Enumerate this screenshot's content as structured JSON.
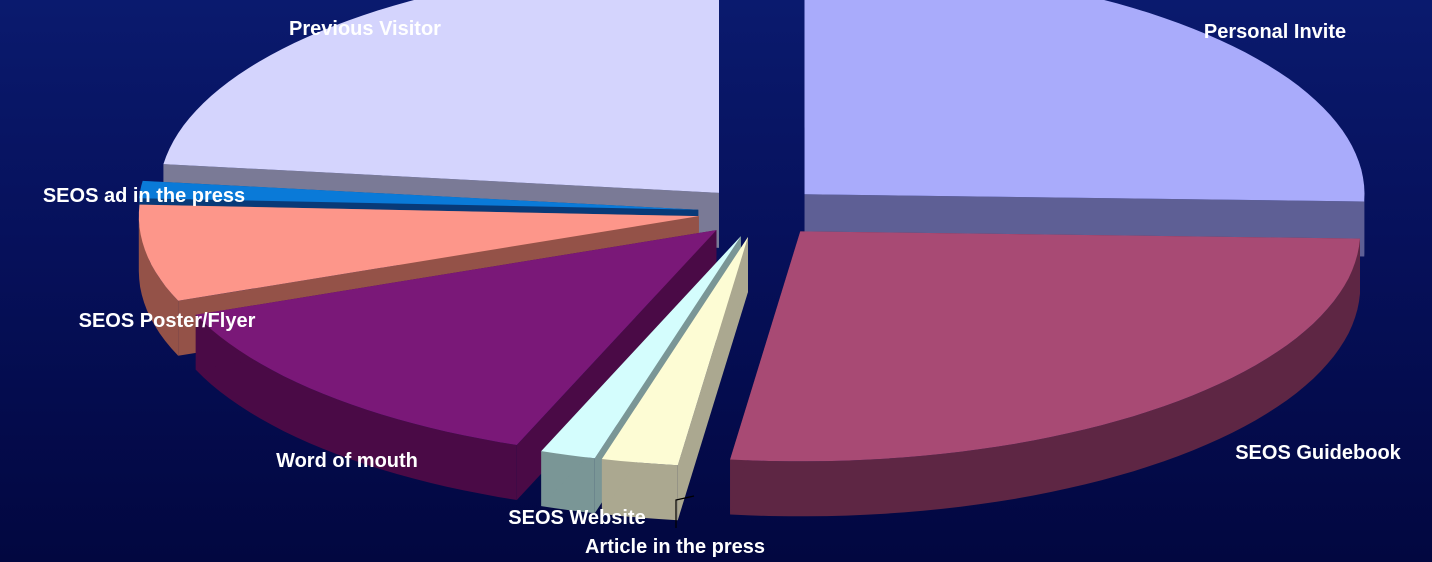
{
  "chart_data": {
    "type": "pie",
    "style": "3d-exploded",
    "title": "",
    "legend": "none",
    "background_color": "#06105a",
    "slices": [
      {
        "label": "Personal Invite",
        "value": 25.5,
        "top_color": "#a9abfb",
        "side_color": "#5e5f95"
      },
      {
        "label": "SEOS Guidebook",
        "value": 26.5,
        "top_color": "#a84a74",
        "side_color": "#5e2644"
      },
      {
        "label": "Article in the press",
        "value": 2.2,
        "top_color": "#fdfcd4",
        "side_color": "#aba890"
      },
      {
        "label": "SEOS Website",
        "value": 1.6,
        "top_color": "#d4fdfd",
        "side_color": "#7a9696"
      },
      {
        "label": "Word of mouth",
        "value": 13.2,
        "top_color": "#7a1878",
        "side_color": "#4a0a46"
      },
      {
        "label": "SEOS Poster/Flyer",
        "value": 6.8,
        "top_color": "#fd968a",
        "side_color": "#945248"
      },
      {
        "label": "SEOS ad in the press",
        "value": 1.2,
        "top_color": "#0a7ad8",
        "side_color": "#083a78"
      },
      {
        "label": "Previous Visitor",
        "value": 23.0,
        "top_color": "#d4d4fd",
        "side_color": "#7a7a96"
      }
    ]
  }
}
